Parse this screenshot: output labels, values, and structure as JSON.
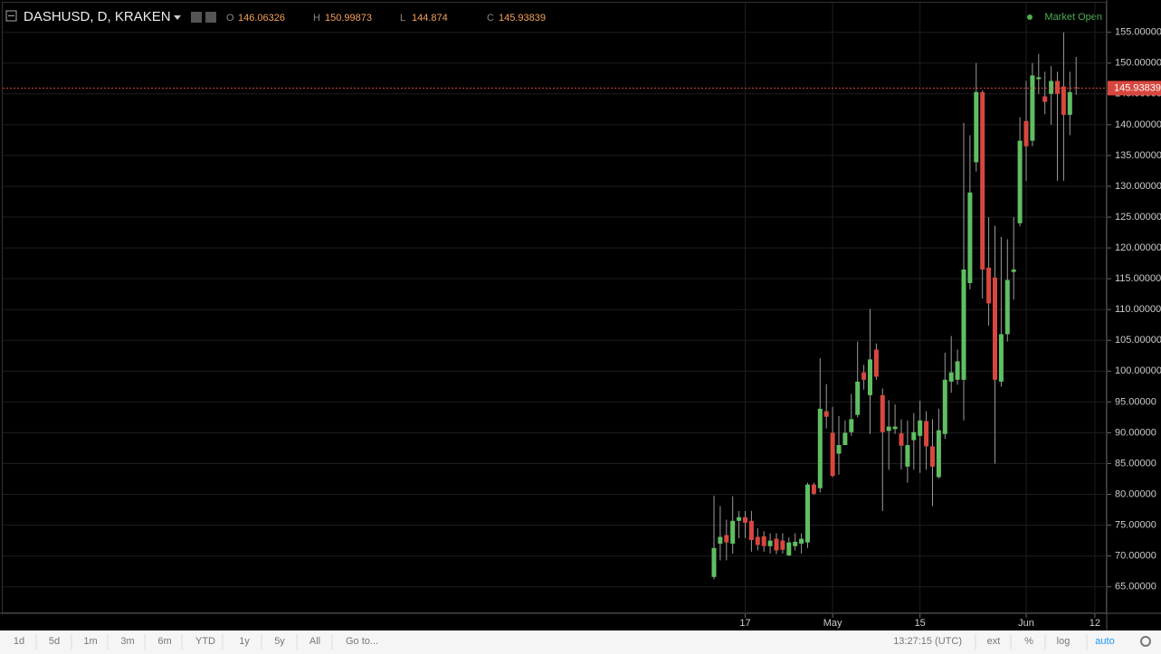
{
  "chart_data": {
    "type": "candlestick",
    "title": "DASHUSD, D, KRAKEN",
    "status": "Market Open",
    "ohlc_labels": [
      "O",
      "H",
      "L",
      "C"
    ],
    "categories": [
      null,
      null,
      null,
      null,
      null,
      "17",
      null,
      null,
      null,
      null,
      null,
      null,
      null,
      null,
      null,
      null,
      null,
      null,
      null,
      "May",
      null,
      null,
      null,
      null,
      null,
      null,
      null,
      null,
      null,
      null,
      null,
      null,
      null,
      "15",
      null,
      null,
      null,
      null,
      null,
      null,
      null,
      null,
      null,
      null,
      null,
      null,
      null,
      null,
      null,
      null,
      "Jun",
      null,
      null,
      null,
      null,
      null,
      null,
      null,
      null,
      null,
      null,
      "12"
    ],
    "open": [
      66.6,
      72.0,
      73.4,
      72.0,
      75.7,
      76.3,
      75.7,
      73.1,
      73.2,
      71.6,
      72.8,
      72.5,
      70.1,
      71.6,
      72.0,
      72.2,
      81.6,
      81.0,
      93.5,
      90.0,
      86.6,
      88.0,
      90.1,
      92.9,
      99.8,
      96.1,
      103.5,
      96.1,
      90.3,
      90.6,
      89.9,
      84.5,
      88.8,
      89.5,
      91.9,
      87.8,
      82.8,
      89.8,
      98.3,
      98.6,
      98.6,
      114.3,
      133.9,
      145.3,
      116.8,
      115.2,
      98.3,
      106.0,
      116.1,
      124.0,
      140.6,
      137.4,
      147.4,
      144.6,
      145.0,
      147.1,
      146.2,
      141.6,
      146.06326,
      null,
      null,
      null
    ],
    "high": [
      79.8,
      78.1,
      75.9,
      79.7,
      77.3,
      77.3,
      77.3,
      74.5,
      74.0,
      73.7,
      73.7,
      73.7,
      73.0,
      73.7,
      73.7,
      81.9,
      81.9,
      102.1,
      97.9,
      94.2,
      92.7,
      92.0,
      96.3,
      104.8,
      101.0,
      110.1,
      104.5,
      97.2,
      95.3,
      94.6,
      92.2,
      92.0,
      93.2,
      95.2,
      93.5,
      92.2,
      93.9,
      103.0,
      105.7,
      103.5,
      140.3,
      138.3,
      150.0,
      145.6,
      125.0,
      123.6,
      121.8,
      121.4,
      125.0,
      141.2,
      147.1,
      150.0,
      151.5,
      148.6,
      149.5,
      148.6,
      155.0,
      148.6,
      150.99873,
      null,
      null,
      null
    ],
    "low": [
      66.2,
      69.3,
      69.3,
      70.4,
      72.9,
      72.9,
      70.7,
      70.9,
      70.7,
      70.4,
      70.3,
      70.4,
      70.0,
      70.9,
      70.4,
      71.3,
      79.9,
      80.3,
      90.7,
      82.8,
      83.2,
      88.0,
      89.5,
      92.5,
      97.0,
      89.8,
      98.6,
      77.3,
      84.0,
      89.8,
      84.0,
      81.9,
      84.0,
      83.5,
      84.0,
      78.1,
      82.6,
      89.0,
      96.5,
      97.8,
      92.0,
      113.3,
      132.4,
      111.8,
      107.4,
      85.0,
      97.5,
      104.8,
      111.6,
      123.5,
      130.9,
      136.5,
      145.0,
      141.7,
      140.0,
      130.9,
      130.9,
      138.3,
      144.874,
      null,
      null,
      null
    ],
    "close": [
      71.3,
      73.1,
      72.2,
      75.7,
      76.3,
      75.4,
      72.6,
      71.8,
      71.6,
      72.5,
      70.9,
      71.0,
      72.2,
      72.3,
      72.8,
      81.6,
      80.1,
      93.9,
      92.6,
      83.0,
      88.0,
      90.0,
      92.2,
      98.3,
      98.6,
      101.9,
      99.1,
      90.1,
      91.0,
      91.0,
      87.9,
      88.0,
      90.1,
      92.0,
      87.8,
      84.5,
      90.4,
      98.6,
      99.8,
      101.6,
      116.5,
      129.0,
      145.3,
      116.5,
      111.0,
      98.6,
      106.0,
      114.8,
      116.5,
      137.4,
      136.5,
      148.0,
      147.7,
      143.7,
      147.1,
      145.0,
      141.6,
      145.3,
      145.93839,
      null,
      null,
      null
    ],
    "up_color": "#5fbf62",
    "down_color": "#d8473f",
    "ylim": [
      60.7,
      159.8
    ],
    "yticks": [
      {
        "value": 65,
        "label": "65.00000"
      },
      {
        "value": 70,
        "label": "70.00000"
      },
      {
        "value": 75,
        "label": "75.00000"
      },
      {
        "value": 80,
        "label": "80.00000"
      },
      {
        "value": 85,
        "label": "85.00000"
      },
      {
        "value": 90,
        "label": "90.00000"
      },
      {
        "value": 95,
        "label": "95.00000"
      },
      {
        "value": 100,
        "label": "100.00000"
      },
      {
        "value": 105,
        "label": "105.00000"
      },
      {
        "value": 110,
        "label": "110.00000"
      },
      {
        "value": 115,
        "label": "115.00000"
      },
      {
        "value": 120,
        "label": "120.00000"
      },
      {
        "value": 125,
        "label": "125.00000"
      },
      {
        "value": 130,
        "label": "130.00000"
      },
      {
        "value": 135,
        "label": "135.00000"
      },
      {
        "value": 140,
        "label": "140.00000"
      },
      {
        "value": 145,
        "label": "145.00000"
      },
      {
        "value": 150,
        "label": "150.00000"
      },
      {
        "value": 155,
        "label": "155.00000"
      }
    ],
    "grid": true
  },
  "toolbar": {
    "ranges": [
      "1d",
      "5d",
      "1m",
      "3m",
      "6m",
      "YTD",
      "1y",
      "5y",
      "All"
    ],
    "goto": "Go to...",
    "time": "13:27:15 (UTC)",
    "options": [
      "ext",
      "%",
      "log",
      "auto"
    ]
  }
}
